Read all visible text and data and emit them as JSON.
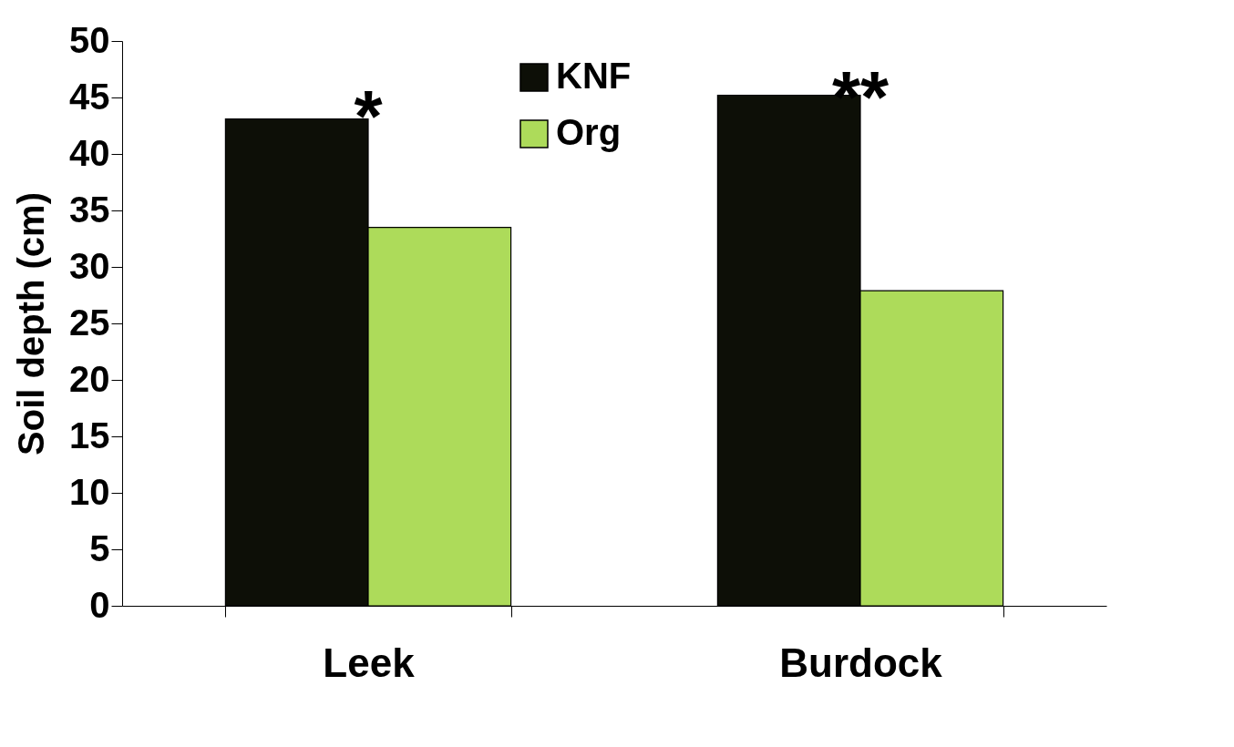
{
  "chart_data": {
    "type": "bar",
    "ylabel": "Soil depth (cm)",
    "categories": [
      "Leek",
      "Burdock"
    ],
    "series": [
      {
        "name": "KNF",
        "color": "#0d0f07",
        "values": [
          43.1,
          45.2
        ]
      },
      {
        "name": "Org",
        "color": "#addb5a",
        "values": [
          33.5,
          27.9
        ]
      }
    ],
    "ylim": [
      0,
      50
    ],
    "yticks": [
      0,
      5,
      10,
      15,
      20,
      25,
      30,
      35,
      40,
      45,
      50
    ],
    "grid": false,
    "legend": "top",
    "annotations": [
      "*",
      "**"
    ]
  }
}
